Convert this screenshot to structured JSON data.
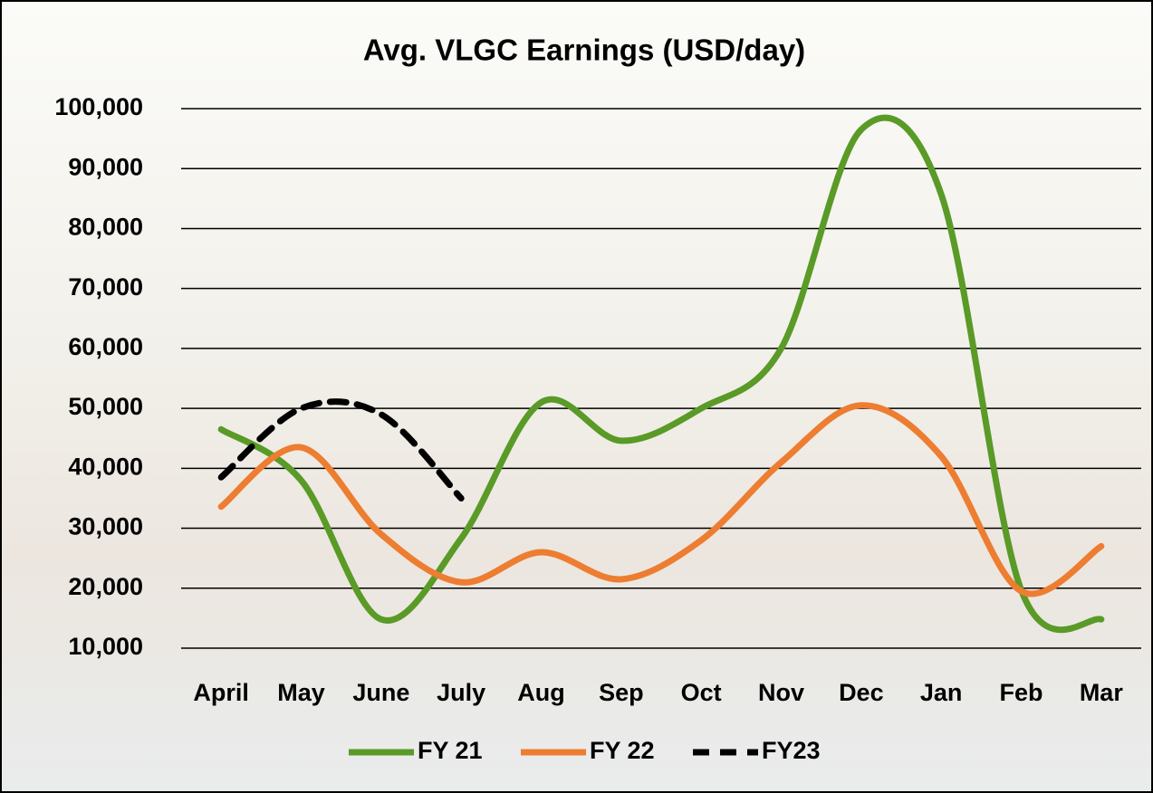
{
  "chart_data": {
    "type": "line",
    "title": "Avg. VLGC Earnings (USD/day)",
    "categories": [
      "April",
      "May",
      "June",
      "July",
      "Aug",
      "Sep",
      "Oct",
      "Nov",
      "Dec",
      "Jan",
      "Feb",
      "Mar"
    ],
    "series": [
      {
        "name": "FY 21",
        "color": "#5a9a27",
        "values": [
          46500,
          38000,
          14800,
          28300,
          51000,
          44600,
          50000,
          60000,
          96500,
          85700,
          19700,
          14800
        ]
      },
      {
        "name": "FY 22",
        "color": "#ed7d31",
        "values": [
          33600,
          43500,
          29000,
          21000,
          26000,
          21500,
          28000,
          41000,
          50500,
          42000,
          19500,
          27000
        ]
      },
      {
        "name": "FY23",
        "color": "#000000",
        "dashed": true,
        "values": [
          38500,
          50000,
          49000,
          35000,
          null,
          null,
          null,
          null,
          null,
          null,
          null,
          null
        ]
      }
    ],
    "ylim": [
      10000,
      100000
    ],
    "yticks": [
      {
        "value": 10000,
        "label": "10,000"
      },
      {
        "value": 20000,
        "label": "20,000"
      },
      {
        "value": 30000,
        "label": "30,000"
      },
      {
        "value": 40000,
        "label": "40,000"
      },
      {
        "value": 50000,
        "label": "50,000"
      },
      {
        "value": 60000,
        "label": "60,000"
      },
      {
        "value": 70000,
        "label": "70,000"
      },
      {
        "value": 80000,
        "label": "80,000"
      },
      {
        "value": 90000,
        "label": "90,000"
      },
      {
        "value": 100000,
        "label": "100,000"
      }
    ],
    "grid": true,
    "legend": "bottom"
  }
}
